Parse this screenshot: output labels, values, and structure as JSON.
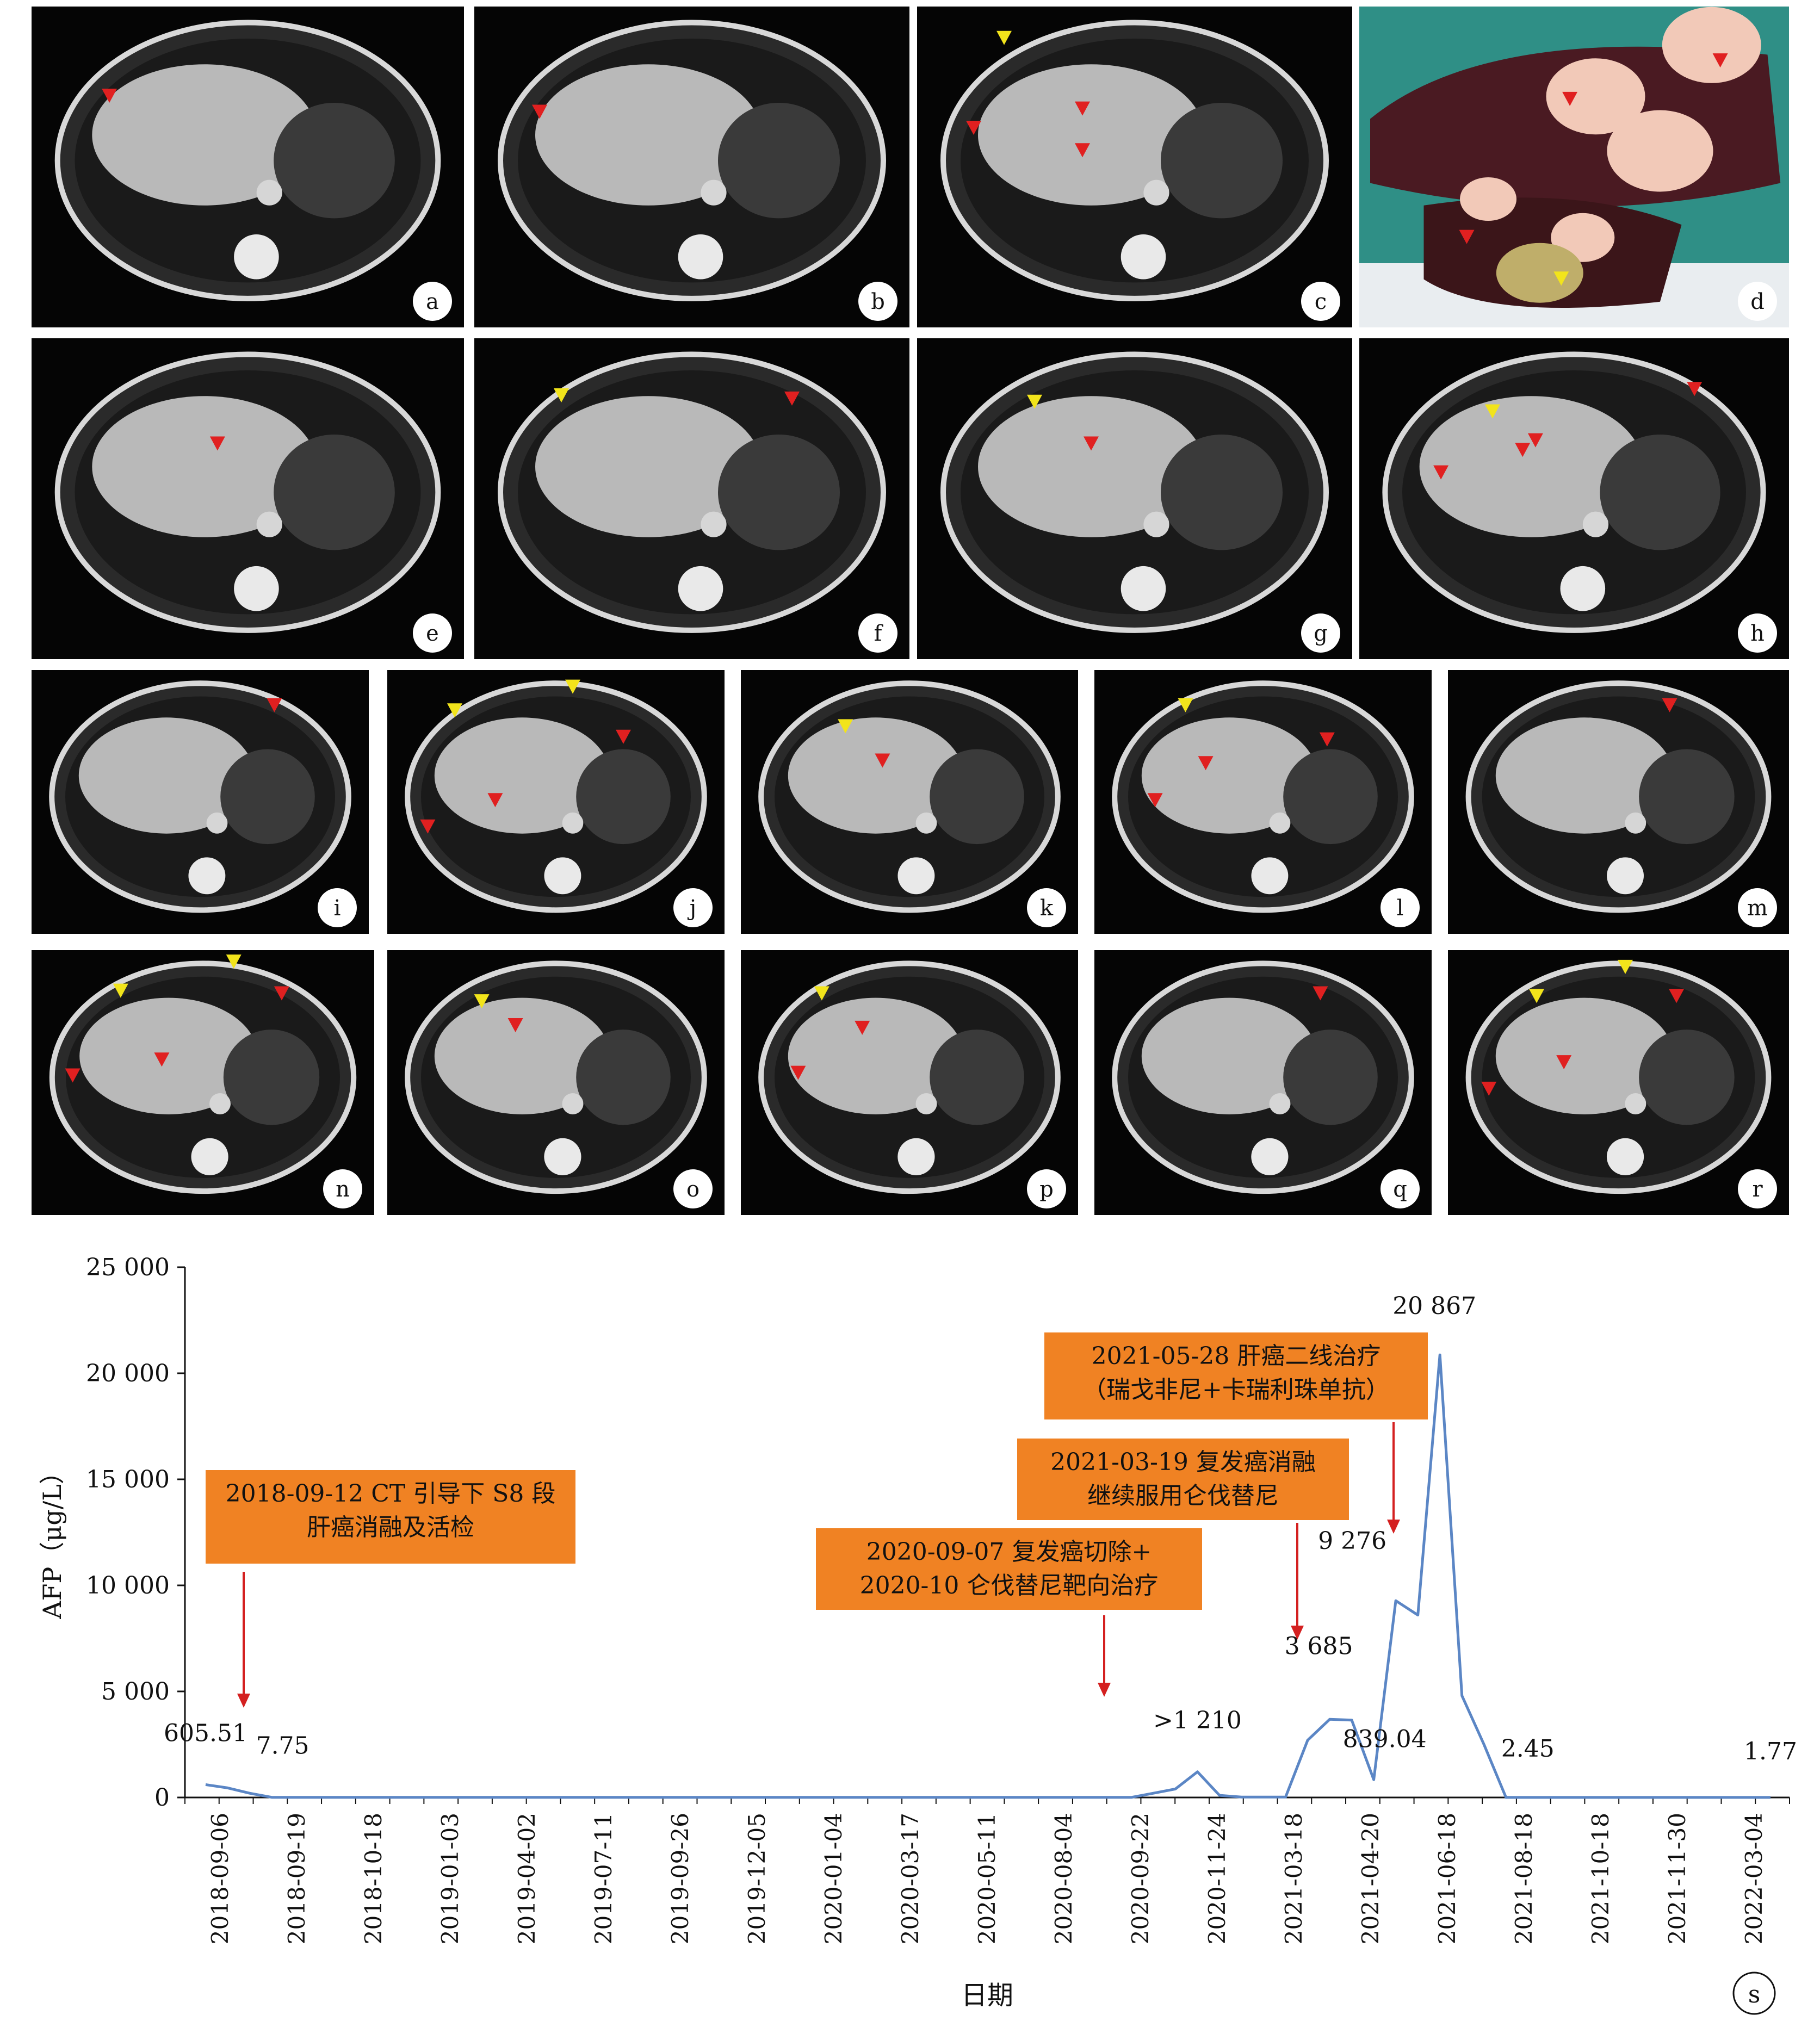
{
  "panels": [
    {
      "label": "a",
      "kind": "ct"
    },
    {
      "label": "b",
      "kind": "ct"
    },
    {
      "label": "c",
      "kind": "ct"
    },
    {
      "label": "d",
      "kind": "photo"
    },
    {
      "label": "e",
      "kind": "ct"
    },
    {
      "label": "f",
      "kind": "ct"
    },
    {
      "label": "g",
      "kind": "ct"
    },
    {
      "label": "h",
      "kind": "ct"
    },
    {
      "label": "i",
      "kind": "ct"
    },
    {
      "label": "j",
      "kind": "ct"
    },
    {
      "label": "k",
      "kind": "ct"
    },
    {
      "label": "l",
      "kind": "ct"
    },
    {
      "label": "m",
      "kind": "ct"
    },
    {
      "label": "n",
      "kind": "ct"
    },
    {
      "label": "o",
      "kind": "ct"
    },
    {
      "label": "p",
      "kind": "ct"
    },
    {
      "label": "q",
      "kind": "ct"
    },
    {
      "label": "r",
      "kind": "ct"
    }
  ],
  "chart_label": "s",
  "colors": {
    "line": "#5b86c5",
    "annotation_box": "#f08223",
    "arrow": "#d42020",
    "marker_yellow": "#f2e41b",
    "marker_red": "#e02020"
  },
  "chart_data": {
    "type": "line",
    "ylabel": "AFP（μg/L）",
    "xlabel": "日期",
    "ylim": [
      0,
      25000
    ],
    "yticks": [
      "0",
      "5 000",
      "10 000",
      "15 000",
      "20 000",
      "25 000"
    ],
    "ytick_values": [
      0,
      5000,
      10000,
      15000,
      20000,
      25000
    ],
    "x_ticks": [
      "2018-09-06",
      "2018-09-19",
      "2018-10-18",
      "2019-01-03",
      "2019-04-02",
      "2019-07-11",
      "2019-09-26",
      "2019-12-05",
      "2020-01-04",
      "2020-03-17",
      "2020-05-11",
      "2020-08-04",
      "2020-09-22",
      "2020-11-24",
      "2021-03-18",
      "2021-04-20",
      "2021-06-18",
      "2021-08-18",
      "2021-10-18",
      "2021-11-30",
      "2022-03-04"
    ],
    "series": [
      {
        "values": [
          605.51,
          450,
          200,
          7.75,
          5,
          5,
          5,
          5,
          5,
          5,
          5,
          5,
          5,
          5,
          5,
          5,
          5,
          5,
          5,
          5,
          5,
          5,
          5,
          5,
          5,
          5,
          5,
          5,
          5,
          5,
          5,
          5,
          5,
          5,
          5,
          5,
          5,
          5,
          5,
          5,
          5,
          5,
          5,
          200,
          400,
          1210,
          100,
          20,
          20,
          20,
          2700,
          3685,
          3650,
          839.04,
          9276,
          8600,
          20867,
          4800,
          2500,
          2.45,
          2,
          2,
          2,
          2,
          2,
          2,
          2,
          2,
          2,
          2,
          2,
          1.77
        ]
      }
    ],
    "data_labels": [
      {
        "text": "605.51",
        "index": 0
      },
      {
        "text": "7.75",
        "index": 3
      },
      {
        "text": ">1 210",
        "index": 45
      },
      {
        "text": "3 685",
        "index": 51
      },
      {
        "text": "839.04",
        "index": 53
      },
      {
        "text": "9 276",
        "index": 54
      },
      {
        "text": "20 867",
        "index": 56
      },
      {
        "text": "2.45",
        "index": 59
      },
      {
        "text": "1.77",
        "index": 71
      }
    ],
    "annotations": [
      {
        "lines": [
          "2018-09-12 CT 引导下 S8 段",
          "肝癌消融及活检"
        ],
        "index": 1
      },
      {
        "lines": [
          "2020-09-07 复发癌切除+",
          "2020-10 仑伐替尼靶向治疗"
        ],
        "index": 47
      },
      {
        "lines": [
          "2021-03-19 复发癌消融",
          "继续服用仑伐替尼"
        ],
        "index": 52
      },
      {
        "lines": [
          "2021-05-28 肝癌二线治疗",
          "（瑞戈非尼+卡瑞利珠单抗）"
        ],
        "index": 55
      }
    ]
  }
}
